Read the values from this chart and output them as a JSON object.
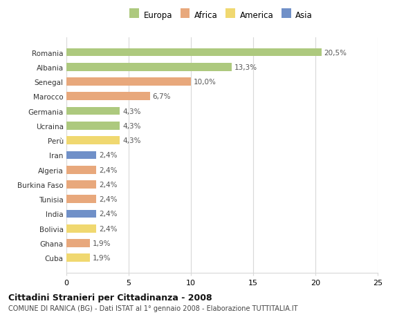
{
  "categories": [
    "Romania",
    "Albania",
    "Senegal",
    "Marocco",
    "Germania",
    "Ucraina",
    "Perù",
    "Iran",
    "Algeria",
    "Burkina Faso",
    "Tunisia",
    "India",
    "Bolivia",
    "Ghana",
    "Cuba"
  ],
  "values": [
    20.5,
    13.3,
    10.0,
    6.7,
    4.3,
    4.3,
    4.3,
    2.4,
    2.4,
    2.4,
    2.4,
    2.4,
    2.4,
    1.9,
    1.9
  ],
  "labels": [
    "20,5%",
    "13,3%",
    "10,0%",
    "6,7%",
    "4,3%",
    "4,3%",
    "4,3%",
    "2,4%",
    "2,4%",
    "2,4%",
    "2,4%",
    "2,4%",
    "2,4%",
    "1,9%",
    "1,9%"
  ],
  "colors": [
    "#adc97e",
    "#adc97e",
    "#e8a87c",
    "#e8a87c",
    "#adc97e",
    "#adc97e",
    "#f0d870",
    "#7090c8",
    "#e8a87c",
    "#e8a87c",
    "#e8a87c",
    "#7090c8",
    "#f0d870",
    "#e8a87c",
    "#f0d870"
  ],
  "legend": {
    "Europa": "#adc97e",
    "Africa": "#e8a87c",
    "America": "#f0d870",
    "Asia": "#7090c8"
  },
  "title": "Cittadini Stranieri per Cittadinanza - 2008",
  "subtitle": "COMUNE DI RANICA (BG) - Dati ISTAT al 1° gennaio 2008 - Elaborazione TUTTITALIA.IT",
  "xlim": [
    0,
    25
  ],
  "xticks": [
    0,
    5,
    10,
    15,
    20,
    25
  ],
  "background_color": "#ffffff",
  "grid_color": "#d8d8d8"
}
